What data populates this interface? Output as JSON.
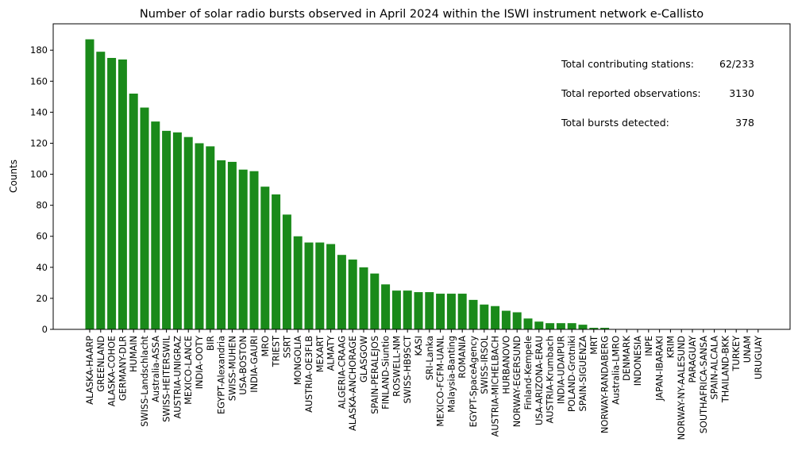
{
  "chart_data": {
    "type": "bar",
    "title": "Number of solar radio bursts observed in April 2024 within the ISWI instrument network e-Callisto",
    "xlabel": "",
    "ylabel": "Counts",
    "ylim": [
      0,
      197
    ],
    "yticks": [
      0,
      20,
      40,
      60,
      80,
      100,
      120,
      140,
      160,
      180
    ],
    "grid": false,
    "bar_color": "#1a8a1a",
    "categories": [
      "ALASKA-HAARP",
      "GREENLAND",
      "ALASKA-COHOE",
      "GERMANY-DLR",
      "HUMAIN",
      "SWISS-Landschlacht",
      "Australia-ASSA",
      "SWISS-HEITERSWIL",
      "AUSTRIA-UNIGRAZ",
      "MEXICO-LANCE",
      "INDIA-OOTY",
      "BIR",
      "EGYPT-Alexandria",
      "SWISS-MUHEN",
      "USA-BOSTON",
      "INDIA-GAURI",
      "MRO",
      "TRIEST",
      "SSRT",
      "MONGOLIA",
      "AUSTRIA-OE3FLB",
      "MEXART",
      "ALMATY",
      "ALGERIA-CRAAG",
      "ALASKA-ANCHORAGE",
      "GLASGOW",
      "SPAIN-PERALEJOS",
      "FINLAND-Siuntio",
      "ROSWELL-NM",
      "SWISS-HB9SCT",
      "KASI",
      "SRI-Lanka",
      "MEXICO-FCFM-UANL",
      "Malaysia-Banting",
      "ROMANIA",
      "EGYPT-SpaceAgency",
      "SWISS-IRSOL",
      "AUSTRIA-MICHELBACH",
      "HURBANOVO",
      "NORWAY-EGERSUND",
      "Finland-Kempele",
      "USA-ARIZONA-ERAU",
      "AUSTRIA-Krumbach",
      "INDIA-UDAIPUR",
      "POLAND-Grotniki",
      "SPAIN-SIGUENZA",
      "MRT",
      "NORWAY-RANDABERG",
      "Australia-LMRO",
      "DENMARK",
      "INDONESIA",
      "INPE",
      "JAPAN-IBARAKI",
      "KRIM",
      "NORWAY-NY-AALESUND",
      "PARAGUAY",
      "SOUTHAFRICA-SANSA",
      "SPAIN-ALCALA",
      "THAILAND-BKK",
      "TURKEY",
      "UNAM",
      "URUGUAY"
    ],
    "values": [
      187,
      179,
      175,
      174,
      152,
      143,
      134,
      128,
      127,
      124,
      120,
      118,
      109,
      108,
      103,
      102,
      92,
      87,
      74,
      60,
      56,
      56,
      55,
      48,
      45,
      40,
      36,
      29,
      25,
      25,
      24,
      24,
      23,
      23,
      23,
      19,
      16,
      15,
      12,
      11,
      7,
      5,
      4,
      4,
      4,
      3,
      1,
      1,
      0,
      0,
      0,
      0,
      0,
      0,
      0,
      0,
      0,
      0,
      0,
      0,
      0,
      0
    ],
    "annotations": [
      {
        "label": "Total contributing stations:",
        "value": "62/233"
      },
      {
        "label": "Total reported observations:",
        "value": "3130"
      },
      {
        "label": "Total bursts detected:",
        "value": "378"
      }
    ]
  }
}
